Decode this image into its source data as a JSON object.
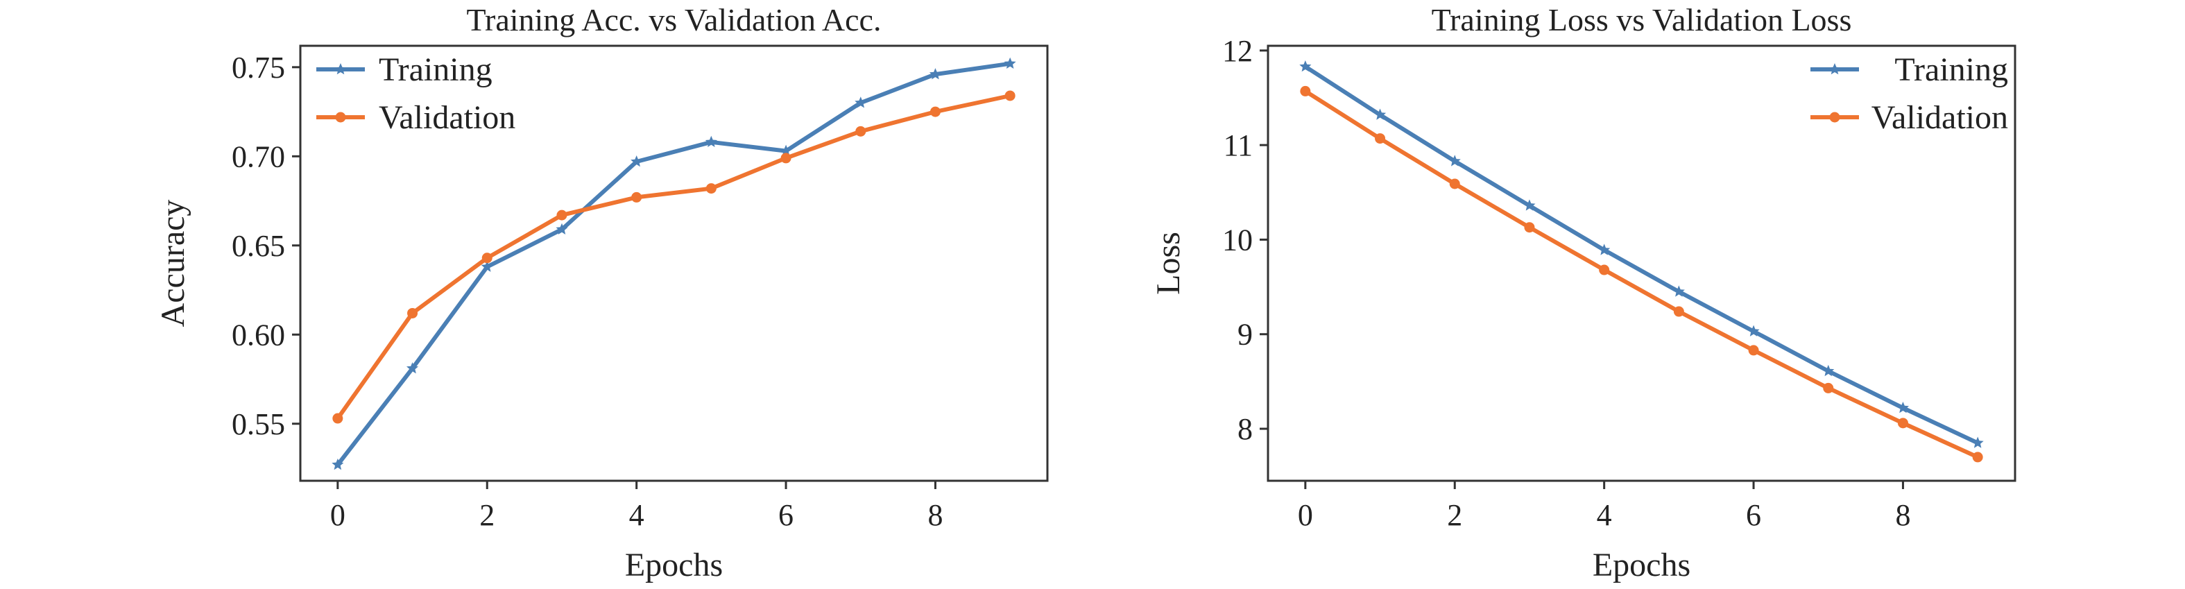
{
  "chart_data": [
    {
      "type": "line",
      "title": "Training Acc. vs Validation Acc.",
      "xlabel": "Epochs",
      "ylabel": "Accuracy",
      "x": [
        0,
        1,
        2,
        3,
        4,
        5,
        6,
        7,
        8,
        9
      ],
      "xticks": [
        0,
        2,
        4,
        6,
        8
      ],
      "yticks": [
        0.55,
        0.6,
        0.65,
        0.7,
        0.75
      ],
      "xlim": [
        -0.5,
        9.5
      ],
      "ylim": [
        0.518,
        0.762
      ],
      "grid": false,
      "legend_position": "top-left",
      "series": [
        {
          "name": "Training",
          "color": "#4a7fb5",
          "marker": "star",
          "values": [
            0.527,
            0.581,
            0.638,
            0.659,
            0.697,
            0.708,
            0.703,
            0.73,
            0.746,
            0.752
          ]
        },
        {
          "name": "Validation",
          "color": "#ef7430",
          "marker": "circle",
          "values": [
            0.553,
            0.612,
            0.643,
            0.667,
            0.677,
            0.682,
            0.699,
            0.714,
            0.725,
            0.734
          ]
        }
      ]
    },
    {
      "type": "line",
      "title": "Training Loss vs Validation Loss",
      "xlabel": "Epochs",
      "ylabel": "Loss",
      "x": [
        0,
        1,
        2,
        3,
        4,
        5,
        6,
        7,
        8,
        9
      ],
      "xticks": [
        0,
        2,
        4,
        6,
        8
      ],
      "yticks": [
        8,
        9,
        10,
        11,
        12
      ],
      "xlim": [
        -0.5,
        9.5
      ],
      "ylim": [
        7.45,
        12.05
      ],
      "grid": false,
      "legend_position": "top-right",
      "series": [
        {
          "name": "Training",
          "color": "#4a7fb5",
          "marker": "star",
          "values": [
            11.83,
            11.32,
            10.83,
            10.36,
            9.89,
            9.45,
            9.03,
            8.61,
            8.22,
            7.85
          ]
        },
        {
          "name": "Validation",
          "color": "#ef7430",
          "marker": "circle",
          "values": [
            11.57,
            11.07,
            10.59,
            10.13,
            9.68,
            9.24,
            8.83,
            8.43,
            8.06,
            7.7
          ]
        }
      ]
    }
  ]
}
